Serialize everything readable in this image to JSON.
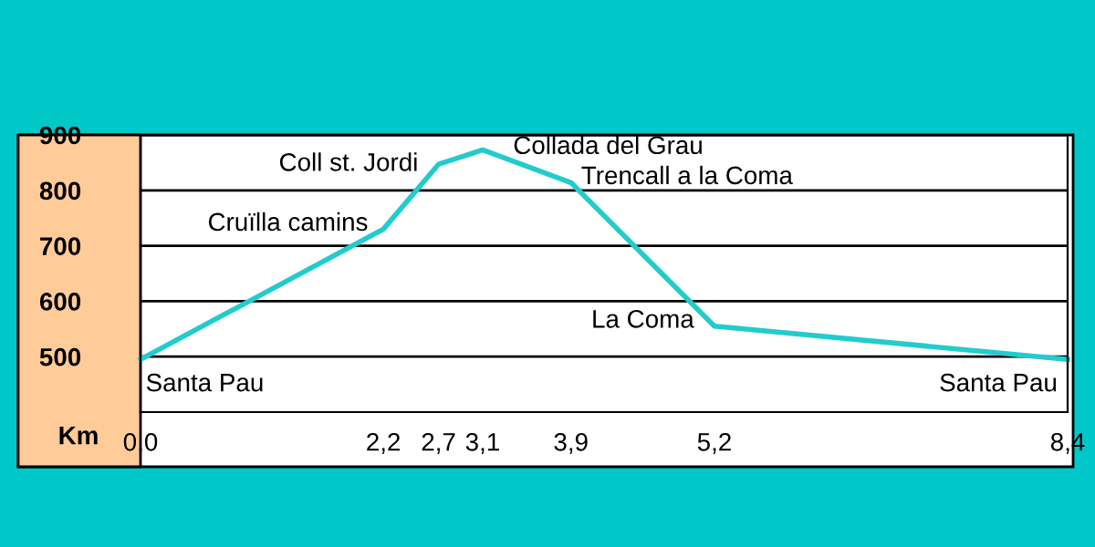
{
  "chart_data": {
    "type": "line",
    "xlabel": "Km",
    "x": [
      0.0,
      2.2,
      2.7,
      3.1,
      3.9,
      5.2,
      8.4
    ],
    "series": [
      {
        "color": "#22cccc",
        "values": [
          495,
          730,
          847,
          873,
          814,
          555,
          495
        ]
      }
    ],
    "annotations": [
      {
        "text": "Santa Pau",
        "x": 0.0,
        "y": 495
      },
      {
        "text": "Cruïlla camins",
        "x": 2.2,
        "y": 730
      },
      {
        "text": "Coll st. Jordi",
        "x": 2.7,
        "y": 847
      },
      {
        "text": "Collada del Grau",
        "x": 3.1,
        "y": 873
      },
      {
        "text": "Trencall a la Coma",
        "x": 3.9,
        "y": 814
      },
      {
        "text": "La Coma",
        "x": 5.2,
        "y": 555
      },
      {
        "text": "Santa Pau",
        "x": 8.4,
        "y": 495
      }
    ],
    "xlim": [
      0,
      8.4
    ],
    "xticks": [
      {
        "value": 0.0,
        "label": "0,0"
      },
      {
        "value": 2.2,
        "label": "2,2"
      },
      {
        "value": 2.7,
        "label": "2,7"
      },
      {
        "value": 3.1,
        "label": "3,1"
      },
      {
        "value": 3.9,
        "label": "3,9"
      },
      {
        "value": 5.2,
        "label": "5,2"
      },
      {
        "value": 8.4,
        "label": "8,4"
      }
    ],
    "ylim": [
      400,
      900
    ],
    "yticks": [
      500,
      600,
      700,
      800,
      900
    ],
    "grid": "y",
    "marker": "none",
    "line_style": "solid"
  }
}
